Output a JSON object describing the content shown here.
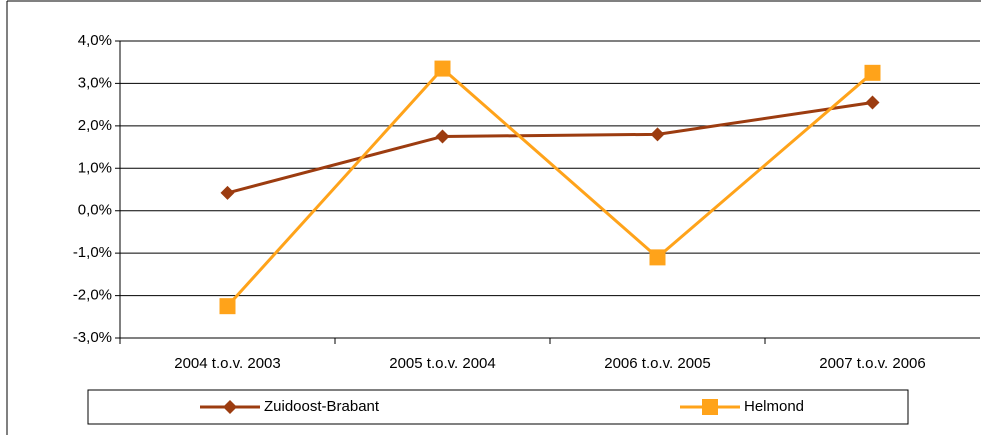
{
  "chart_data": {
    "type": "line",
    "categories": [
      "2004 t.o.v. 2003",
      "2005 t.o.v. 2004",
      "2006 t.o.v. 2005",
      "2007 t.o.v. 2006"
    ],
    "series": [
      {
        "name": "Zuidoost-Brabant",
        "color": "#9c3c10",
        "marker": "diamond",
        "values": [
          0.42,
          1.75,
          1.8,
          2.55
        ]
      },
      {
        "name": "Helmond",
        "color": "#ffa31a",
        "marker": "square",
        "values": [
          -2.25,
          3.35,
          -1.1,
          3.25
        ]
      }
    ],
    "ylim": [
      -3,
      4
    ],
    "yticks": [
      {
        "value": -3,
        "label": "-3,0%"
      },
      {
        "value": -2,
        "label": "-2,0%"
      },
      {
        "value": -1,
        "label": "-1,0%"
      },
      {
        "value": 0,
        "label": "0,0%"
      },
      {
        "value": 1,
        "label": "1,0%"
      },
      {
        "value": 2,
        "label": "2,0%"
      },
      {
        "value": 3,
        "label": "3,0%"
      },
      {
        "value": 4,
        "label": "4,0%"
      }
    ],
    "grid": true,
    "legend": "bottom"
  }
}
